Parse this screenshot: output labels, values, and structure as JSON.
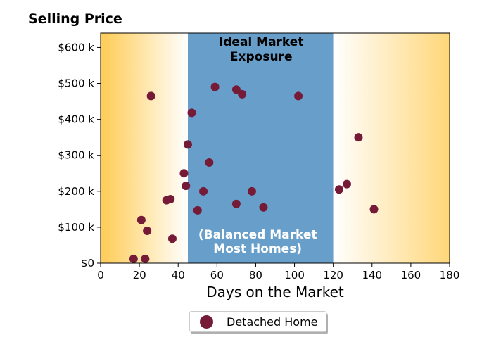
{
  "chart_data": {
    "type": "scatter",
    "title": "Selling Price",
    "xlabel": "Days on the Market",
    "ylabel": "",
    "xlim": [
      0,
      180
    ],
    "ylim": [
      0,
      640000
    ],
    "x_ticks": [
      0,
      20,
      40,
      60,
      80,
      100,
      120,
      140,
      160,
      180
    ],
    "x_tick_labels": [
      "0",
      "20",
      "40",
      "60",
      "80",
      "100",
      "120",
      "140",
      "160",
      "180"
    ],
    "y_ticks": [
      0,
      100000,
      200000,
      300000,
      400000,
      500000,
      600000
    ],
    "y_tick_labels": [
      "$0",
      "$100 k",
      "$200 k",
      "$300 k",
      "$400 k",
      "$500 k",
      "$600 k"
    ],
    "grid": false,
    "legend_placement": "below-center",
    "shaded_regions": [
      {
        "x_range": [
          0,
          45
        ],
        "style": "gradient",
        "color_edge": "#ffcc55",
        "color_inner": "#ffffff"
      },
      {
        "x_range": [
          45,
          120
        ],
        "style": "solid",
        "color": "#689fca"
      },
      {
        "x_range": [
          120,
          180
        ],
        "style": "gradient",
        "color_edge": "#ffd779",
        "color_inner": "#ffffff"
      }
    ],
    "annotations": [
      {
        "lines": [
          "Ideal Market",
          "Exposure"
        ],
        "x": 81,
        "color": "#000000"
      },
      {
        "lines": [
          "(Balanced Market",
          "Most Homes)"
        ],
        "x": 81,
        "color": "#ffffff"
      }
    ],
    "series": [
      {
        "name": "Detached Home",
        "color": "#751a37",
        "points": [
          [
            17,
            12000
          ],
          [
            23,
            12000
          ],
          [
            21,
            120000
          ],
          [
            24,
            90000
          ],
          [
            26,
            465000
          ],
          [
            34,
            175000
          ],
          [
            36,
            178000
          ],
          [
            37,
            68000
          ],
          [
            43,
            250000
          ],
          [
            44,
            215000
          ],
          [
            45,
            330000
          ],
          [
            47,
            418000
          ],
          [
            50,
            147000
          ],
          [
            53,
            200000
          ],
          [
            56,
            280000
          ],
          [
            59,
            490000
          ],
          [
            70,
            165000
          ],
          [
            70,
            483000
          ],
          [
            73,
            470000
          ],
          [
            78,
            200000
          ],
          [
            84,
            155000
          ],
          [
            102,
            465000
          ],
          [
            123,
            205000
          ],
          [
            127,
            220000
          ],
          [
            133,
            350000
          ],
          [
            141,
            150000
          ]
        ]
      }
    ]
  }
}
